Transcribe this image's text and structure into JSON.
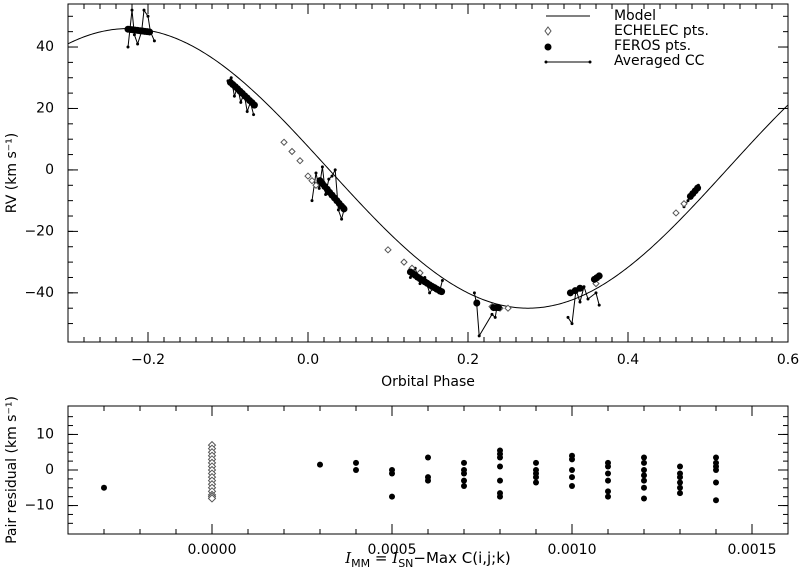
{
  "chart_data": [
    {
      "type": "scatter",
      "panel": "top",
      "xlabel": "Orbital Phase",
      "ylabel": "RV (km s⁻¹)",
      "xlim": [
        -0.3,
        0.6
      ],
      "ylim": [
        -56,
        54
      ],
      "xticks": [
        -0.2,
        0.0,
        0.2,
        0.4,
        0.6
      ],
      "xtick_labels": [
        "−0.2",
        "0.0",
        "0.2",
        "0.4",
        "0.6"
      ],
      "yticks": [
        -40,
        -20,
        0,
        20,
        40
      ],
      "ytick_labels": [
        "−40",
        "−20",
        "0",
        "20",
        "40"
      ],
      "legend_position": "top-right",
      "legend": [
        {
          "label": "Model",
          "symbol": "line"
        },
        {
          "label": "ECHELEC pts.",
          "symbol": "open-diamond"
        },
        {
          "label": "FEROS pts.",
          "symbol": "filled-circle"
        },
        {
          "label": "Averaged CC",
          "symbol": "line-with-dots"
        }
      ],
      "model": {
        "gamma": 0.5,
        "K": 45.5,
        "phase_of_max": -0.225,
        "period_in_phase": 1.0
      },
      "series": [
        {
          "name": "ECHELEC pts.",
          "marker": "open-diamond",
          "x": [
            -0.03,
            -0.02,
            -0.01,
            0.0,
            0.005,
            0.01,
            0.1,
            0.12,
            0.13,
            0.14,
            0.23,
            0.24,
            0.25,
            0.36,
            0.46,
            0.47,
            0.48
          ],
          "y": [
            9.0,
            6.0,
            3.0,
            -2.0,
            -3.5,
            -5.0,
            -26.0,
            -30.0,
            -32.0,
            -33.5,
            -44.5,
            -45.0,
            -45.0,
            -37.0,
            -14.0,
            -11.0,
            -8.0
          ]
        },
        {
          "name": "FEROS pts.",
          "marker": "filled-circle",
          "x": [
            -0.225,
            -0.222,
            -0.219,
            -0.216,
            -0.213,
            -0.21,
            -0.207,
            -0.204,
            -0.201,
            -0.198,
            -0.097,
            -0.094,
            -0.091,
            -0.088,
            -0.085,
            -0.082,
            -0.079,
            -0.076,
            -0.073,
            -0.07,
            -0.067,
            0.015,
            0.018,
            0.021,
            0.024,
            0.027,
            0.03,
            0.033,
            0.036,
            0.039,
            0.042,
            0.045,
            0.128,
            0.131,
            0.134,
            0.137,
            0.14,
            0.143,
            0.146,
            0.149,
            0.152,
            0.155,
            0.158,
            0.161,
            0.164,
            0.167,
            0.211,
            0.232,
            0.235,
            0.238,
            0.328,
            0.334,
            0.34,
            0.358,
            0.361,
            0.364,
            0.478,
            0.481,
            0.484,
            0.487
          ],
          "y": [
            45.8,
            45.7,
            45.6,
            45.5,
            45.4,
            45.3,
            45.2,
            45.1,
            45.0,
            44.9,
            28.5,
            27.8,
            27.1,
            26.4,
            25.6,
            24.9,
            24.1,
            23.4,
            22.6,
            21.9,
            21.1,
            -3.5,
            -4.5,
            -5.4,
            -6.3,
            -7.3,
            -8.2,
            -9.1,
            -10.0,
            -10.9,
            -11.8,
            -12.7,
            -33.2,
            -33.8,
            -34.3,
            -34.9,
            -35.4,
            -35.9,
            -36.4,
            -36.9,
            -37.4,
            -37.9,
            -38.3,
            -38.8,
            -39.2,
            -39.6,
            -43.3,
            -44.8,
            -44.8,
            -44.8,
            -40.0,
            -39.3,
            -38.5,
            -35.6,
            -35.1,
            -34.5,
            -8.6,
            -7.7,
            -6.8,
            -5.9
          ]
        },
        {
          "name": "Averaged CC",
          "marker": "line-with-dots",
          "segments": [
            {
              "x": [
                -0.225,
                -0.22,
                -0.217,
                -0.213,
                -0.208,
                -0.205,
                -0.2,
                -0.197,
                -0.192
              ],
              "y": [
                40.0,
                52.0,
                44.0,
                41.0,
                45.0,
                52.0,
                50.0,
                45.0,
                42.0
              ]
            },
            {
              "x": [
                -0.1,
                -0.096,
                -0.092,
                -0.088,
                -0.084,
                -0.08,
                -0.076,
                -0.072,
                -0.068
              ],
              "y": [
                29.0,
                30.0,
                24.0,
                27.0,
                22.0,
                25.0,
                19.0,
                22.0,
                18.0
              ]
            },
            {
              "x": [
                0.005,
                0.01,
                0.014,
                0.018,
                0.022,
                0.026,
                0.03,
                0.034,
                0.038,
                0.042,
                0.046
              ],
              "y": [
                -10.0,
                -1.0,
                -6.0,
                1.0,
                -8.0,
                -3.0,
                -2.0,
                0.0,
                -13.0,
                -16.0,
                -12.0
              ]
            },
            {
              "x": [
                0.128,
                0.134,
                0.14,
                0.146,
                0.152,
                0.158,
                0.164,
                0.168
              ],
              "y": [
                -35.0,
                -32.0,
                -37.0,
                -35.0,
                -40.0,
                -38.0,
                -40.0,
                -36.0
              ]
            },
            {
              "x": [
                0.208,
                0.211,
                0.214,
                0.23,
                0.234,
                0.236
              ],
              "y": [
                -40.0,
                -44.0,
                -54.0,
                -47.0,
                -48.0,
                -45.0
              ]
            },
            {
              "x": [
                0.325,
                0.33,
                0.335,
                0.34,
                0.345,
                0.35,
                0.36,
                0.364
              ],
              "y": [
                -48.0,
                -50.0,
                -39.0,
                -43.0,
                -38.0,
                -42.0,
                -40.0,
                -44.0
              ]
            },
            {
              "x": [
                0.47,
                0.475,
                0.48,
                0.485,
                0.488
              ],
              "y": [
                -12.0,
                -10.0,
                -8.0,
                -7.0,
                -5.0
              ]
            }
          ]
        }
      ]
    },
    {
      "type": "scatter",
      "panel": "bottom",
      "xlabel": "I_MM = I_SN − Max C(i,j;k)",
      "xlabel_parts": {
        "i1": "I",
        "s1": "MM",
        "eq": " = ",
        "i2": "I",
        "s2": "SN",
        "rest": "−Max C(i,j;k)"
      },
      "ylabel": "Pair residual (km s⁻¹)",
      "xlim": [
        -0.0004,
        0.0016
      ],
      "ylim": [
        -18,
        18
      ],
      "xticks": [
        0.0,
        0.0005,
        0.001,
        0.0015
      ],
      "xtick_labels": [
        "0.0000",
        "0.0005",
        "0.0010",
        "0.0015"
      ],
      "yticks": [
        -10,
        0,
        10
      ],
      "ytick_labels": [
        "−10",
        "0",
        "10"
      ],
      "series": [
        {
          "name": "ECHELEC pts.",
          "marker": "open-diamond",
          "x": [
            0,
            0,
            0,
            0,
            0,
            0,
            0,
            0,
            0,
            0,
            0,
            0,
            0,
            0,
            0,
            0,
            0
          ],
          "y": [
            7,
            6,
            5,
            4,
            3,
            2,
            1,
            0,
            -1,
            -2,
            -3,
            -4,
            -5,
            -6,
            -7,
            -7.5,
            -8
          ]
        },
        {
          "name": "FEROS pts.",
          "marker": "filled-circle",
          "x": [
            -0.0003,
            0.0003,
            0.0004,
            0.0004,
            0.0005,
            0.0005,
            0.0005,
            0.0006,
            0.0006,
            0.0006,
            0.0007,
            0.0007,
            0.0007,
            0.0007,
            0.0007,
            0.0008,
            0.0008,
            0.0008,
            0.0008,
            0.0008,
            0.0008,
            0.0008,
            0.0009,
            0.0009,
            0.0009,
            0.0009,
            0.0009,
            0.001,
            0.001,
            0.001,
            0.001,
            0.001,
            0.0011,
            0.0011,
            0.0011,
            0.0011,
            0.0011,
            0.0011,
            0.0012,
            0.0012,
            0.0012,
            0.0012,
            0.0012,
            0.0012,
            0.0012,
            0.0013,
            0.0013,
            0.0013,
            0.0013,
            0.0013,
            0.0013,
            0.0014,
            0.0014,
            0.0014,
            0.0014,
            0.0014,
            0.0014
          ],
          "y": [
            -5,
            1.5,
            2,
            0,
            0,
            -1,
            -7.5,
            3.5,
            -2,
            -3,
            2,
            0,
            -1,
            -3,
            -4.5,
            5.5,
            4.5,
            3.5,
            1,
            -3,
            -6.5,
            -7.5,
            2,
            0,
            -1,
            -2,
            -3.5,
            4,
            3,
            0,
            -2,
            -4.5,
            2,
            1,
            -1,
            -3,
            -6,
            -7.5,
            3.5,
            2,
            0,
            -1.5,
            -3,
            -5,
            -8,
            1,
            -1,
            -2,
            -3.5,
            -5,
            -6.5,
            3.5,
            2,
            1,
            0,
            -3.5,
            -8.5
          ]
        }
      ]
    }
  ]
}
